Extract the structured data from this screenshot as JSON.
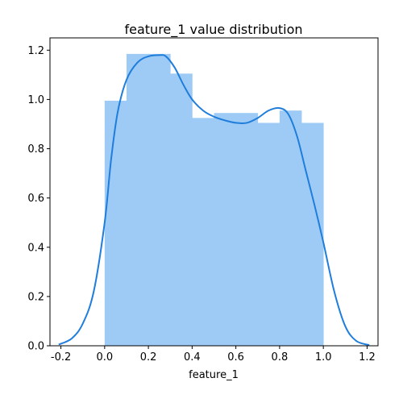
{
  "chart_data": {
    "type": "bar",
    "title": "feature_1 value distribution",
    "xlabel": "feature_1",
    "ylabel": "",
    "xlim": [
      -0.25,
      1.25
    ],
    "ylim": [
      0,
      1.25
    ],
    "xticks": [
      "-0.2",
      "0.0",
      "0.2",
      "0.4",
      "0.6",
      "0.8",
      "1.0",
      "1.2"
    ],
    "yticks": [
      "0.0",
      "0.2",
      "0.4",
      "0.6",
      "0.8",
      "1.0",
      "1.2"
    ],
    "grid": false,
    "histogram": {
      "bin_edges": [
        0.0,
        0.1,
        0.2,
        0.3,
        0.4,
        0.5,
        0.6,
        0.7,
        0.8,
        0.9,
        1.0
      ],
      "values": [
        0.995,
        1.185,
        1.185,
        1.105,
        0.925,
        0.945,
        0.945,
        0.905,
        0.955,
        0.905
      ],
      "color": "#9ecbf5"
    },
    "kde": {
      "color": "#1f7ddb",
      "x": [
        -0.21,
        -0.15,
        -0.1,
        -0.05,
        0.0,
        0.03,
        0.06,
        0.1,
        0.15,
        0.2,
        0.25,
        0.28,
        0.32,
        0.36,
        0.4,
        0.45,
        0.5,
        0.55,
        0.6,
        0.65,
        0.7,
        0.75,
        0.8,
        0.84,
        0.88,
        0.92,
        0.96,
        1.0,
        1.05,
        1.1,
        1.15,
        1.21
      ],
      "y": [
        0.005,
        0.03,
        0.09,
        0.22,
        0.5,
        0.76,
        0.95,
        1.08,
        1.15,
        1.175,
        1.18,
        1.175,
        1.13,
        1.06,
        1.0,
        0.955,
        0.93,
        0.915,
        0.905,
        0.905,
        0.925,
        0.955,
        0.965,
        0.94,
        0.85,
        0.71,
        0.57,
        0.42,
        0.22,
        0.08,
        0.02,
        0.003
      ]
    }
  }
}
